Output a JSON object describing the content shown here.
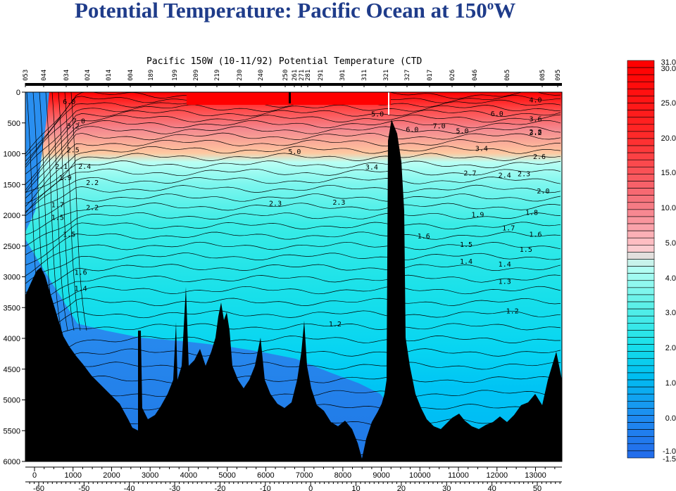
{
  "title": {
    "main": "Potential Temperature: Pacific Ocean at 150",
    "superscript": "o",
    "tail": "W"
  },
  "chart_data": {
    "type": "contour",
    "title": "Pacific 150W (10-11/92) Potential Temperature (CTD",
    "ylim": [
      0,
      6000
    ],
    "y_ticks": [
      0,
      500,
      1000,
      1500,
      2000,
      2500,
      3000,
      3500,
      4000,
      4500,
      5000,
      5500,
      6000
    ],
    "y_invert": true,
    "distance_ticks": [
      0,
      1000,
      2000,
      3000,
      4000,
      5000,
      6000,
      7000,
      8000,
      9000,
      10000,
      11000,
      12000,
      13000
    ],
    "latitude_ticks": [
      -60,
      -50,
      -40,
      -30,
      -20,
      -10,
      0,
      10,
      20,
      30,
      40,
      50
    ],
    "station_labels": [
      "053",
      "044",
      "034",
      "024",
      "014",
      "004",
      "189",
      "199",
      "209",
      "219",
      "230",
      "240",
      "250",
      "261",
      "271",
      "281",
      "291",
      "301",
      "311",
      "321",
      "327",
      "017",
      "026",
      "046",
      "0b5",
      "085",
      "095"
    ],
    "colorbar_ticks": [
      "31.0",
      "30.0",
      "25.0",
      "20.0",
      "15.0",
      "10.0",
      "5.0",
      "4.0",
      "3.0",
      "2.0",
      "1.0",
      "0.0",
      "-1.0",
      "-1.5"
    ],
    "bands": [
      {
        "temp_min": 10.0,
        "temp_max": 31.0,
        "color": "#ff0000"
      },
      {
        "temp_min": 5.0,
        "temp_max": 10.0,
        "color": "#f4888f"
      },
      {
        "temp_min": 4.0,
        "temp_max": 5.0,
        "color": "#ffc8a0"
      },
      {
        "temp_min": 3.0,
        "temp_max": 4.0,
        "color": "#b9fff4"
      },
      {
        "temp_min": 2.0,
        "temp_max": 3.0,
        "color": "#5cf2e8"
      },
      {
        "temp_min": 1.2,
        "temp_max": 2.0,
        "color": "#18e0ea"
      },
      {
        "temp_min": 1.0,
        "temp_max": 1.2,
        "color": "#00c4f0"
      },
      {
        "temp_min": 0.0,
        "temp_max": 1.0,
        "color": "#2a8ff0"
      },
      {
        "temp_min": -1.5,
        "temp_max": 0.0,
        "color": "#1f77e6"
      }
    ],
    "contour_labels": [
      {
        "text": "6.0",
        "x": 900,
        "depth": 150
      },
      {
        "text": "7.0",
        "x": 1150,
        "depth": 460
      },
      {
        "text": "4.0",
        "x": 13000,
        "depth": 120
      },
      {
        "text": "6.0",
        "x": 12000,
        "depth": 340
      },
      {
        "text": "5.0",
        "x": 8900,
        "depth": 350
      },
      {
        "text": "6.0",
        "x": 9800,
        "depth": 600
      },
      {
        "text": "7.0",
        "x": 10500,
        "depth": 540
      },
      {
        "text": "5.0",
        "x": 11100,
        "depth": 620
      },
      {
        "text": "5.0",
        "x": 6750,
        "depth": 960
      },
      {
        "text": "3.6",
        "x": 13000,
        "depth": 430
      },
      {
        "text": "3.4",
        "x": 11600,
        "depth": 910
      },
      {
        "text": "3.4",
        "x": 8750,
        "depth": 1210
      },
      {
        "text": "3.2",
        "x": 1000,
        "depth": 540
      },
      {
        "text": "2.8",
        "x": 13000,
        "depth": 640
      },
      {
        "text": "3.2",
        "x": 13000,
        "depth": 650
      },
      {
        "text": "2.6",
        "x": 13100,
        "depth": 1040
      },
      {
        "text": "2.7",
        "x": 11300,
        "depth": 1310
      },
      {
        "text": "2.4",
        "x": 12200,
        "depth": 1340
      },
      {
        "text": "2.3",
        "x": 12700,
        "depth": 1320
      },
      {
        "text": "2.0",
        "x": 13200,
        "depth": 1600
      },
      {
        "text": "2.3",
        "x": 6250,
        "depth": 1800
      },
      {
        "text": "2.3",
        "x": 7900,
        "depth": 1780
      },
      {
        "text": "2.5",
        "x": 1000,
        "depth": 930
      },
      {
        "text": "2.1",
        "x": 700,
        "depth": 1200
      },
      {
        "text": "1.9",
        "x": 800,
        "depth": 1380
      },
      {
        "text": "2.4",
        "x": 1300,
        "depth": 1200
      },
      {
        "text": "2.2",
        "x": 1500,
        "depth": 1460
      },
      {
        "text": "2.2",
        "x": 1500,
        "depth": 1870
      },
      {
        "text": "1.7",
        "x": 600,
        "depth": 1820
      },
      {
        "text": "1.5",
        "x": 600,
        "depth": 2030
      },
      {
        "text": "1.5",
        "x": 900,
        "depth": 2300
      },
      {
        "text": "1.9",
        "x": 11500,
        "depth": 1980
      },
      {
        "text": "1.8",
        "x": 12900,
        "depth": 1950
      },
      {
        "text": "1.7",
        "x": 12300,
        "depth": 2200
      },
      {
        "text": "1.6",
        "x": 10100,
        "depth": 2330
      },
      {
        "text": "1.6",
        "x": 13000,
        "depth": 2300
      },
      {
        "text": "1.5",
        "x": 11200,
        "depth": 2470
      },
      {
        "text": "1.5",
        "x": 12750,
        "depth": 2550
      },
      {
        "text": "1.4",
        "x": 11200,
        "depth": 2740
      },
      {
        "text": "1.4",
        "x": 12200,
        "depth": 2790
      },
      {
        "text": "1.3",
        "x": 12200,
        "depth": 3070
      },
      {
        "text": "1.2",
        "x": 12400,
        "depth": 3550
      },
      {
        "text": "1.2",
        "x": 7800,
        "depth": 3760
      },
      {
        "text": "1.6",
        "x": 1200,
        "depth": 2920
      },
      {
        "text": "1.4",
        "x": 1200,
        "depth": 3180
      }
    ]
  }
}
